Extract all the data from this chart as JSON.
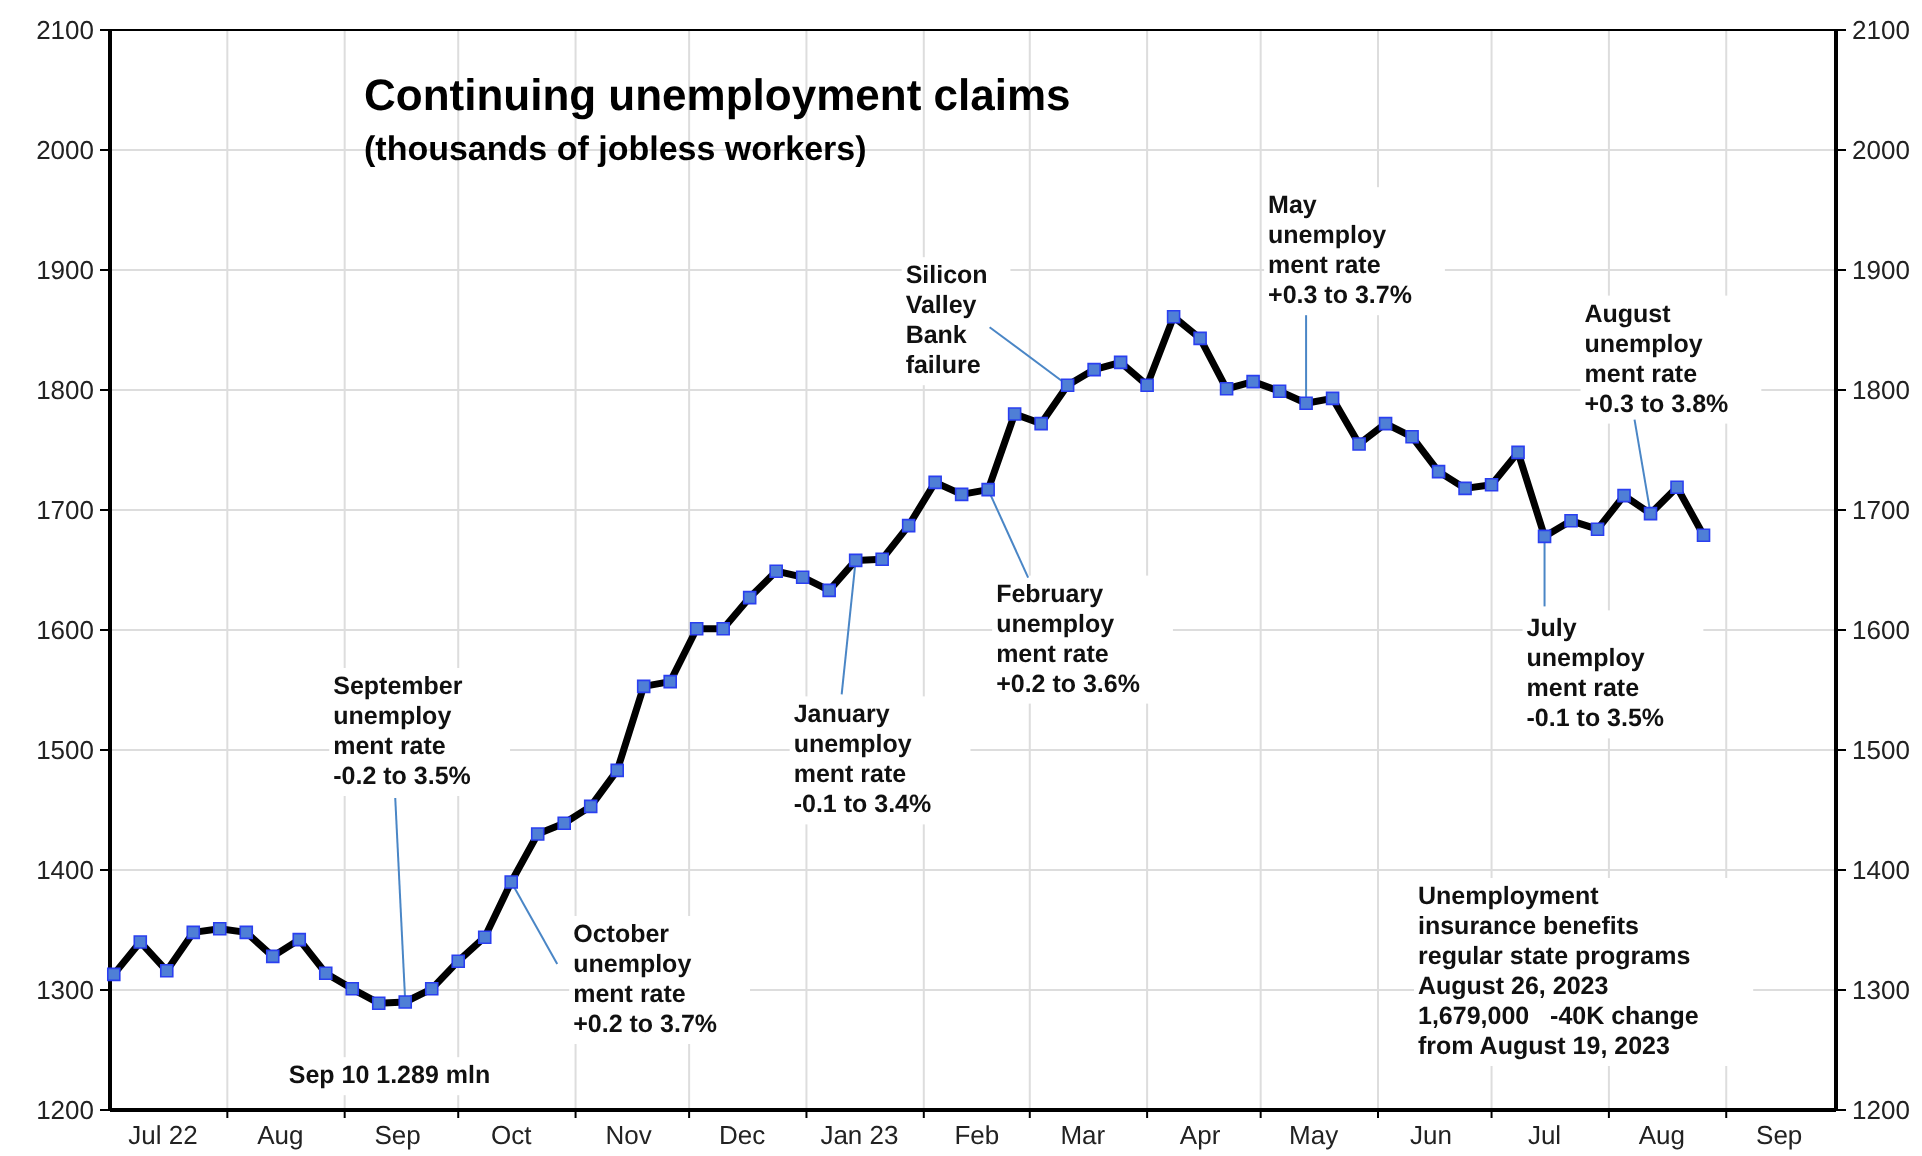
{
  "chart_data": {
    "type": "line",
    "title": "Continuing unemployment claims",
    "subtitle": "(thousands of jobless workers)",
    "x": [
      "2022-07-02",
      "2022-07-09",
      "2022-07-16",
      "2022-07-23",
      "2022-07-30",
      "2022-08-06",
      "2022-08-13",
      "2022-08-20",
      "2022-08-27",
      "2022-09-03",
      "2022-09-10",
      "2022-09-17",
      "2022-09-24",
      "2022-10-01",
      "2022-10-08",
      "2022-10-15",
      "2022-10-22",
      "2022-10-29",
      "2022-11-05",
      "2022-11-12",
      "2022-11-19",
      "2022-11-26",
      "2022-12-03",
      "2022-12-10",
      "2022-12-17",
      "2022-12-24",
      "2022-12-31",
      "2023-01-07",
      "2023-01-14",
      "2023-01-21",
      "2023-01-28",
      "2023-02-04",
      "2023-02-11",
      "2023-02-18",
      "2023-02-25",
      "2023-03-04",
      "2023-03-11",
      "2023-03-18",
      "2023-03-25",
      "2023-04-01",
      "2023-04-08",
      "2023-04-15",
      "2023-04-22",
      "2023-04-29",
      "2023-05-06",
      "2023-05-13",
      "2023-05-20",
      "2023-05-27",
      "2023-06-03",
      "2023-06-10",
      "2023-06-17",
      "2023-06-24",
      "2023-07-01",
      "2023-07-08",
      "2023-07-15",
      "2023-07-22",
      "2023-07-29",
      "2023-08-05",
      "2023-08-12",
      "2023-08-19",
      "2023-08-26"
    ],
    "series": [
      {
        "color": "#000000",
        "values": [
          1313,
          1340,
          1316,
          1348,
          1351,
          1348,
          1328,
          1342,
          1314,
          1301,
          1289,
          1290,
          1301,
          1324,
          1344,
          1390,
          1430,
          1439,
          1453,
          1483,
          1553,
          1557,
          1601,
          1601,
          1627,
          1649,
          1644,
          1633,
          1658,
          1659,
          1687,
          1723,
          1713,
          1717,
          1780,
          1772,
          1804,
          1817,
          1823,
          1804,
          1861,
          1843,
          1801,
          1807,
          1799,
          1789,
          1793,
          1755,
          1772,
          1761,
          1732,
          1718,
          1721,
          1748,
          1678,
          1691,
          1684,
          1712,
          1697,
          1719,
          1679
        ]
      }
    ],
    "xlim": [
      "2022-07-01",
      "2023-09-30"
    ],
    "xticks": [
      {
        "value": "2022-07-15",
        "label": "Jul 22"
      },
      {
        "value": "2022-08-01",
        "label": null
      },
      {
        "value": "2022-08-15",
        "label": "Aug"
      },
      {
        "value": "2022-09-01",
        "label": null
      },
      {
        "value": "2022-09-15",
        "label": "Sep"
      },
      {
        "value": "2022-10-01",
        "label": null
      },
      {
        "value": "2022-10-15",
        "label": "Oct"
      },
      {
        "value": "2022-11-01",
        "label": null
      },
      {
        "value": "2022-11-15",
        "label": "Nov"
      },
      {
        "value": "2022-12-01",
        "label": null
      },
      {
        "value": "2022-12-15",
        "label": "Dec"
      },
      {
        "value": "2023-01-01",
        "label": null
      },
      {
        "value": "2023-01-15",
        "label": "Jan 23"
      },
      {
        "value": "2023-02-01",
        "label": null
      },
      {
        "value": "2023-02-15",
        "label": "Feb"
      },
      {
        "value": "2023-03-01",
        "label": null
      },
      {
        "value": "2023-03-15",
        "label": "Mar"
      },
      {
        "value": "2023-04-01",
        "label": null
      },
      {
        "value": "2023-04-15",
        "label": "Apr"
      },
      {
        "value": "2023-05-01",
        "label": null
      },
      {
        "value": "2023-05-15",
        "label": "May"
      },
      {
        "value": "2023-06-01",
        "label": null
      },
      {
        "value": "2023-06-15",
        "label": "Jun"
      },
      {
        "value": "2023-07-01",
        "label": null
      },
      {
        "value": "2023-07-15",
        "label": "Jul"
      },
      {
        "value": "2023-08-01",
        "label": null
      },
      {
        "value": "2023-08-15",
        "label": "Aug"
      },
      {
        "value": "2023-09-01",
        "label": null
      },
      {
        "value": "2023-09-15",
        "label": "Sep"
      }
    ],
    "ylim": [
      1200,
      2100
    ],
    "yticks": [
      1200,
      1300,
      1400,
      1500,
      1600,
      1700,
      1800,
      1900,
      2000,
      2100
    ],
    "y2lim": [
      1200,
      2100
    ],
    "y2ticks": [
      1200,
      1300,
      1400,
      1500,
      1600,
      1700,
      1800,
      1900,
      2000,
      2100
    ],
    "grid": true,
    "marker": "square",
    "line_style": "solid",
    "annotations": [
      {
        "text": "September\nunemploy\nment rate\n-0.2 to 3.5%",
        "x": "2022-09-17",
        "y": 1290
      },
      {
        "text": "October\nunemploy\nment rate\n+0.2 to 3.7%",
        "x": "2022-10-15",
        "y": 1390
      },
      {
        "text": "January\nunemploy\nment rate\n-0.1 to 3.4%",
        "x": "2023-01-14",
        "y": 1658
      },
      {
        "text": "February\nunemploy\nment rate\n+0.2 to 3.6%",
        "x": "2023-02-18",
        "y": 1717
      },
      {
        "text": "Silicon\nValley\nBank\nfailure",
        "x": "2023-03-11",
        "y": 1804
      },
      {
        "text": "May\nunemploy\nment rate\n+0.3 to 3.7%",
        "x": "2023-05-13",
        "y": 1789
      },
      {
        "text": "July\nunemploy\nment rate\n-0.1 to 3.5%",
        "x": "2023-07-15",
        "y": 1678
      },
      {
        "text": "August\nunemploy\nment rate\n+0.3 to 3.8%",
        "x": "2023-08-12",
        "y": 1697
      },
      {
        "text": "Sep 10 1.289 mln",
        "x": "2022-09-10",
        "y": 1289
      },
      "Unemployment\ninsurance benefits\nregular state programs\nAugust 26, 2023\n1,679,000   -40K change\nfrom August 19, 2023"
    ]
  }
}
